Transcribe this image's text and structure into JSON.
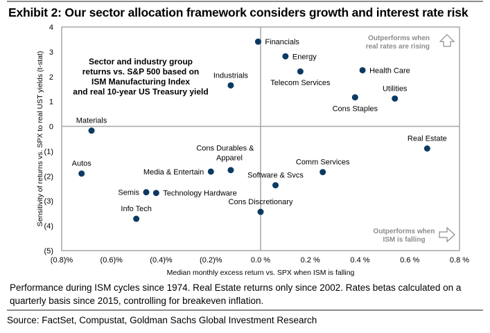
{
  "title": "Exhibit 2: Our sector allocation framework considers growth and interest rate risk",
  "note": "Performance during ISM cycles since 1974. Real Estate returns only since 2002. Rates betas calculated on a quarterly basis since 2015, controlling for breakeven inflation.",
  "source": "Source: FactSet, Compustat, Goldman Sachs Global Investment Research",
  "colors": {
    "marker": "#0b3a63",
    "frame": "#a6a6a6",
    "annotation": "#8c8c8c"
  },
  "chart_data": {
    "type": "scatter",
    "title": "Sector and industry group returns vs. S&P 500 based on ISM Manufacturing Index and real 10-year US Treasury yield",
    "inset_title_lines": [
      "Sector and industry group",
      "returns vs. S&P 500 based on",
      "ISM Manufacturing Index",
      "and real 10-year US Treasury yield"
    ],
    "xlabel": "Median monthly excess return vs. SPX when ISM is falling",
    "ylabel": "Sensitivity of returns vs. SPX to real UST yields (t-stat)",
    "xlim": [
      -0.8,
      0.8
    ],
    "ylim": [
      -5,
      4
    ],
    "x_ticks": [
      -0.8,
      -0.6,
      -0.4,
      -0.2,
      0.0,
      0.2,
      0.4,
      0.6,
      0.8
    ],
    "x_tick_labels": [
      "(0.8)%",
      "(0.6)%",
      "(0.4)%",
      "(0.2)%",
      "0.0 %",
      "0.2 %",
      "0.4 %",
      "0.6 %",
      "0.8 %"
    ],
    "y_ticks": [
      4,
      3,
      2,
      1,
      0,
      -1,
      -2,
      -3,
      -4,
      -5
    ],
    "y_tick_labels": [
      "4",
      "3",
      "2",
      "1",
      "0",
      "(1)",
      "(2)",
      "(3)",
      "(4)",
      "(5)"
    ],
    "grid": false,
    "reference_lines": {
      "x": 0,
      "y": 0
    },
    "annotations": [
      {
        "lines": [
          "Outperforms when",
          "real rates are rising"
        ],
        "arrow": "up",
        "position": "top-right"
      },
      {
        "lines": [
          "Outperforms when",
          "ISM is falling"
        ],
        "arrow": "right",
        "position": "bottom-right"
      }
    ],
    "points": [
      {
        "label": "Financials",
        "x": -0.01,
        "y": 3.41,
        "label_pos": "right"
      },
      {
        "label": "Energy",
        "x": 0.1,
        "y": 2.82,
        "label_pos": "right"
      },
      {
        "label": "Telecom Services",
        "x": 0.16,
        "y": 2.21,
        "label_pos": "below"
      },
      {
        "label": "Health Care",
        "x": 0.41,
        "y": 2.26,
        "label_pos": "right"
      },
      {
        "label": "Industrials",
        "x": -0.12,
        "y": 1.65,
        "label_pos": "above"
      },
      {
        "label": "Cons Staples",
        "x": 0.38,
        "y": 1.17,
        "label_pos": "below"
      },
      {
        "label": "Utilities",
        "x": 0.54,
        "y": 1.12,
        "label_pos": "above"
      },
      {
        "label": "Materials",
        "x": -0.68,
        "y": -0.17,
        "label_pos": "above"
      },
      {
        "label": "Real Estate",
        "x": 0.67,
        "y": -0.89,
        "label_pos": "above"
      },
      {
        "label": "Comm Services",
        "x": 0.25,
        "y": -1.84,
        "label_pos": "above"
      },
      {
        "label": "Cons Durables & Apparel",
        "x": -0.12,
        "y": -1.76,
        "label_pos": "above2"
      },
      {
        "label": "Media & Entertain",
        "x": -0.2,
        "y": -1.82,
        "label_pos": "left"
      },
      {
        "label": "Autos",
        "x": -0.72,
        "y": -1.9,
        "label_pos": "above"
      },
      {
        "label": "Software & Svcs",
        "x": 0.06,
        "y": -2.37,
        "label_pos": "above"
      },
      {
        "label": "Semis",
        "x": -0.46,
        "y": -2.65,
        "label_pos": "left"
      },
      {
        "label": "Technology Hardware",
        "x": -0.42,
        "y": -2.68,
        "label_pos": "right"
      },
      {
        "label": "Cons Discretionary",
        "x": 0.0,
        "y": -3.44,
        "label_pos": "above"
      },
      {
        "label": "Info Tech",
        "x": -0.5,
        "y": -3.72,
        "label_pos": "above"
      }
    ]
  }
}
